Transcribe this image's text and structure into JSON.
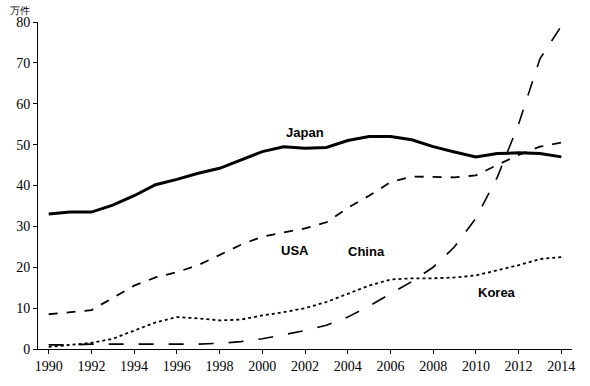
{
  "chart_data": {
    "type": "line",
    "ylabel": "万件",
    "x": [
      1990,
      1991,
      1992,
      1993,
      1994,
      1995,
      1996,
      1997,
      1998,
      1999,
      2000,
      2001,
      2002,
      2003,
      2004,
      2005,
      2006,
      2007,
      2008,
      2009,
      2010,
      2011,
      2012,
      2013,
      2014
    ],
    "series": [
      {
        "name": "Japan",
        "color": "#000000",
        "line_style": "solid",
        "values": [
          33,
          33.5,
          33.5,
          35.2,
          37.5,
          40.2,
          41.5,
          43,
          44.2,
          46.3,
          48.3,
          49.5,
          49.1,
          49.3,
          51,
          52,
          52,
          51.2,
          49.5,
          48.2,
          47,
          47.8,
          48,
          47.8,
          47
        ]
      },
      {
        "name": "USA",
        "color": "#000000",
        "line_style": "dash",
        "values": [
          8.5,
          9,
          9.5,
          12.5,
          15.5,
          17.5,
          18.8,
          20.5,
          23,
          25.5,
          27.5,
          28.5,
          29.5,
          31,
          34.5,
          37.5,
          40.8,
          42.2,
          42.1,
          42,
          42.5,
          45,
          47.5,
          49.5,
          50.5
        ]
      },
      {
        "name": "China",
        "color": "#000000",
        "line_style": "longdash",
        "values": [
          1,
          1,
          1.2,
          1.2,
          1.2,
          1.2,
          1.2,
          1.2,
          1.4,
          1.8,
          2.5,
          3.5,
          4.5,
          5.8,
          7.8,
          10.5,
          13.5,
          16.5,
          20,
          25,
          32,
          42,
          55,
          71,
          79
        ]
      },
      {
        "name": "Korea",
        "color": "#000000",
        "line_style": "dot",
        "values": [
          0.5,
          1,
          1.5,
          2.5,
          4.5,
          6.5,
          7.8,
          7.5,
          7,
          7.2,
          8.2,
          9,
          10,
          11.5,
          13.5,
          15.5,
          17,
          17.3,
          17.3,
          17.5,
          18,
          19.3,
          20.5,
          22,
          22.5
        ]
      }
    ],
    "xlim": [
      1989.5,
      2014.5
    ],
    "xticks": [
      1990,
      1992,
      1994,
      1996,
      1998,
      2000,
      2002,
      2004,
      2006,
      2008,
      2010,
      2012,
      2014
    ],
    "ylim": [
      0,
      80
    ],
    "yticks": [
      0,
      10,
      20,
      30,
      40,
      50,
      60,
      70,
      80
    ],
    "grid": false
  }
}
